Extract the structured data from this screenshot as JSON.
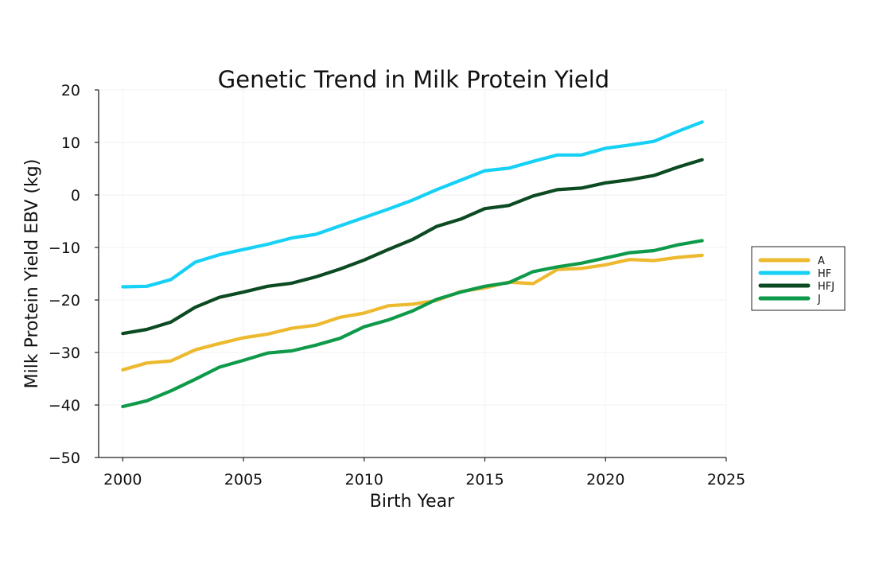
{
  "chart_data": {
    "type": "line",
    "title": "Genetic Trend in Milk Protein Yield",
    "xlabel": "Birth Year",
    "ylabel": "Milk Protein Yield EBV (kg)",
    "xlim": [
      1999,
      2025
    ],
    "ylim": [
      -50,
      20
    ],
    "xticks": [
      2000,
      2005,
      2010,
      2015,
      2020,
      2025
    ],
    "yticks": [
      20,
      10,
      0,
      -10,
      -20,
      -30,
      -40,
      -50
    ],
    "ytick_labels": [
      "20",
      "10",
      "0",
      "−10",
      "−20",
      "−30",
      "−40",
      "−50"
    ],
    "grid": true,
    "legend_position": "right",
    "x": [
      2000,
      2001,
      2002,
      2003,
      2004,
      2005,
      2006,
      2007,
      2008,
      2009,
      2010,
      2011,
      2012,
      2013,
      2014,
      2015,
      2016,
      2017,
      2018,
      2019,
      2020,
      2021,
      2022,
      2023,
      2024
    ],
    "series": [
      {
        "name": "A",
        "color": "#EDB92E",
        "values": [
          -33.3,
          -32.0,
          -31.6,
          -29.5,
          -28.3,
          -27.2,
          -26.5,
          -25.4,
          -24.8,
          -23.3,
          -22.5,
          -21.1,
          -20.8,
          -20.1,
          -18.4,
          -17.7,
          -16.6,
          -16.9,
          -14.2,
          -14.0,
          -13.3,
          -12.3,
          -12.5,
          -11.9,
          -11.5
        ]
      },
      {
        "name": "HF",
        "color": "#16D1F5",
        "values": [
          -17.5,
          -17.4,
          -16.1,
          -12.8,
          -11.4,
          -10.4,
          -9.4,
          -8.2,
          -7.5,
          -5.9,
          -4.3,
          -2.7,
          -1.0,
          1.0,
          2.8,
          4.6,
          5.1,
          6.4,
          7.6,
          7.6,
          8.9,
          9.5,
          10.2,
          12.1,
          13.9
        ]
      },
      {
        "name": "HFJ",
        "color": "#0C4A22",
        "values": [
          -26.4,
          -25.6,
          -24.2,
          -21.4,
          -19.5,
          -18.5,
          -17.4,
          -16.8,
          -15.6,
          -14.1,
          -12.4,
          -10.4,
          -8.5,
          -6.0,
          -4.6,
          -2.6,
          -2.0,
          -0.2,
          1.0,
          1.3,
          2.3,
          2.9,
          3.7,
          5.3,
          6.7
        ]
      },
      {
        "name": "J",
        "color": "#0E9A4A",
        "values": [
          -40.3,
          -39.2,
          -37.3,
          -35.1,
          -32.8,
          -31.5,
          -30.1,
          -29.7,
          -28.6,
          -27.3,
          -25.1,
          -23.8,
          -22.1,
          -19.9,
          -18.5,
          -17.4,
          -16.7,
          -14.6,
          -13.7,
          -13.0,
          -12.0,
          -11.0,
          -10.6,
          -9.5,
          -8.7
        ]
      }
    ]
  }
}
